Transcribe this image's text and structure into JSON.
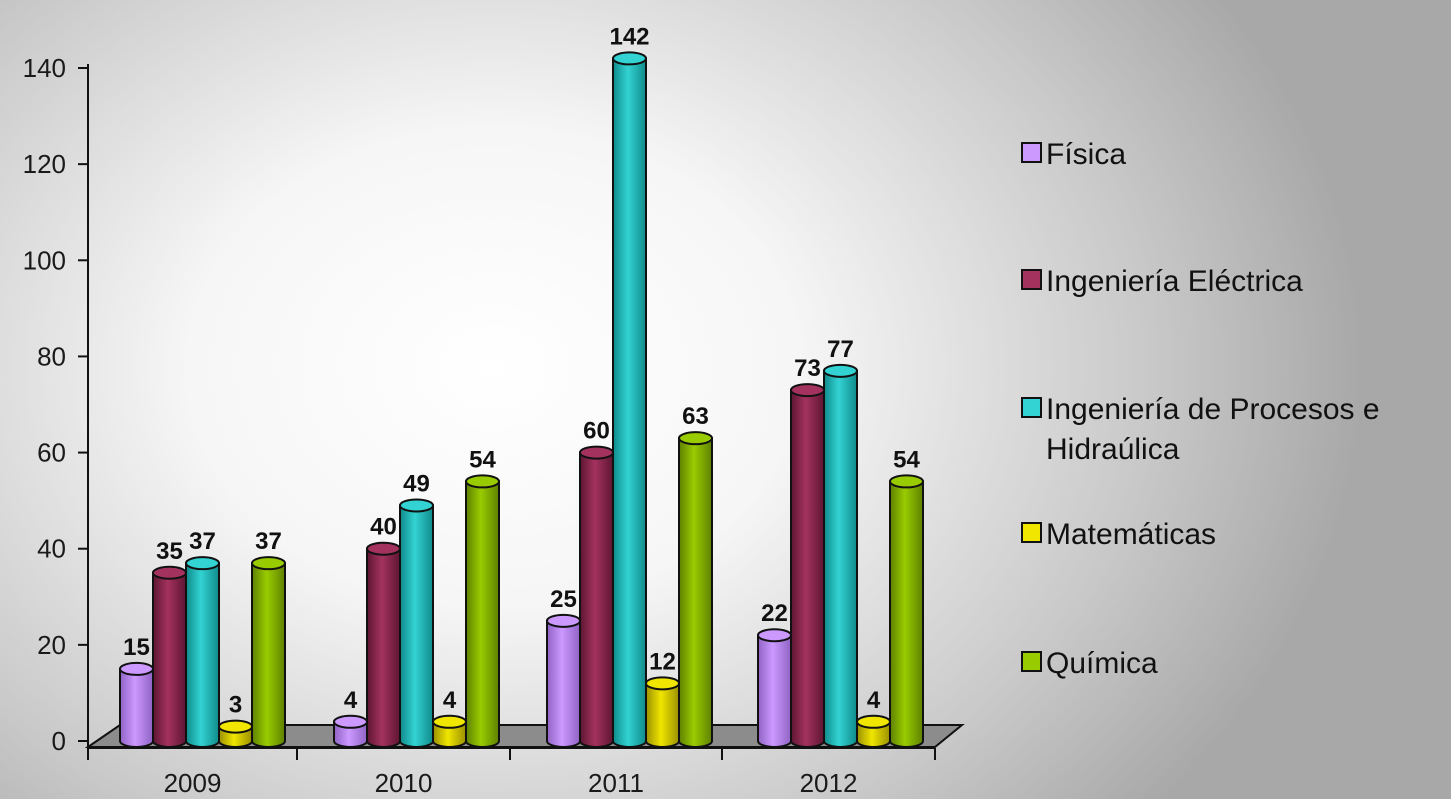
{
  "chart_data": {
    "type": "bar",
    "categories": [
      "2009",
      "2010",
      "2011",
      "2012"
    ],
    "series": [
      {
        "name": "Física",
        "values": [
          15,
          4,
          25,
          22
        ],
        "color": "#cc99ff",
        "dark": "#8f63c4"
      },
      {
        "name": "Ingeniería Eléctrica",
        "values": [
          35,
          40,
          60,
          73
        ],
        "color": "#a3325e",
        "dark": "#5e1532"
      },
      {
        "name": "Ingeniería de Procesos e Hidraúlica",
        "values": [
          37,
          49,
          142,
          77
        ],
        "color": "#33d3d3",
        "dark": "#0f8a8a"
      },
      {
        "name": "Matemáticas",
        "values": [
          3,
          4,
          12,
          4
        ],
        "color": "#f0e600",
        "dark": "#9a9000"
      },
      {
        "name": "Química",
        "values": [
          37,
          54,
          63,
          54
        ],
        "color": "#99cc00",
        "dark": "#5e8000"
      }
    ],
    "legend_lines": [
      [
        "Física"
      ],
      [
        "Ingeniería Eléctrica"
      ],
      [
        "Ingeniería de Procesos e",
        "Hidraúlica"
      ],
      [
        "Matemáticas"
      ],
      [
        "Química"
      ]
    ],
    "y_ticks": [
      "0",
      "20",
      "40",
      "60",
      "80",
      "100",
      "120",
      "140"
    ],
    "ylim": [
      0,
      140
    ],
    "legend_position": "right",
    "grid": false,
    "title": "",
    "xlabel": "",
    "ylabel": ""
  }
}
